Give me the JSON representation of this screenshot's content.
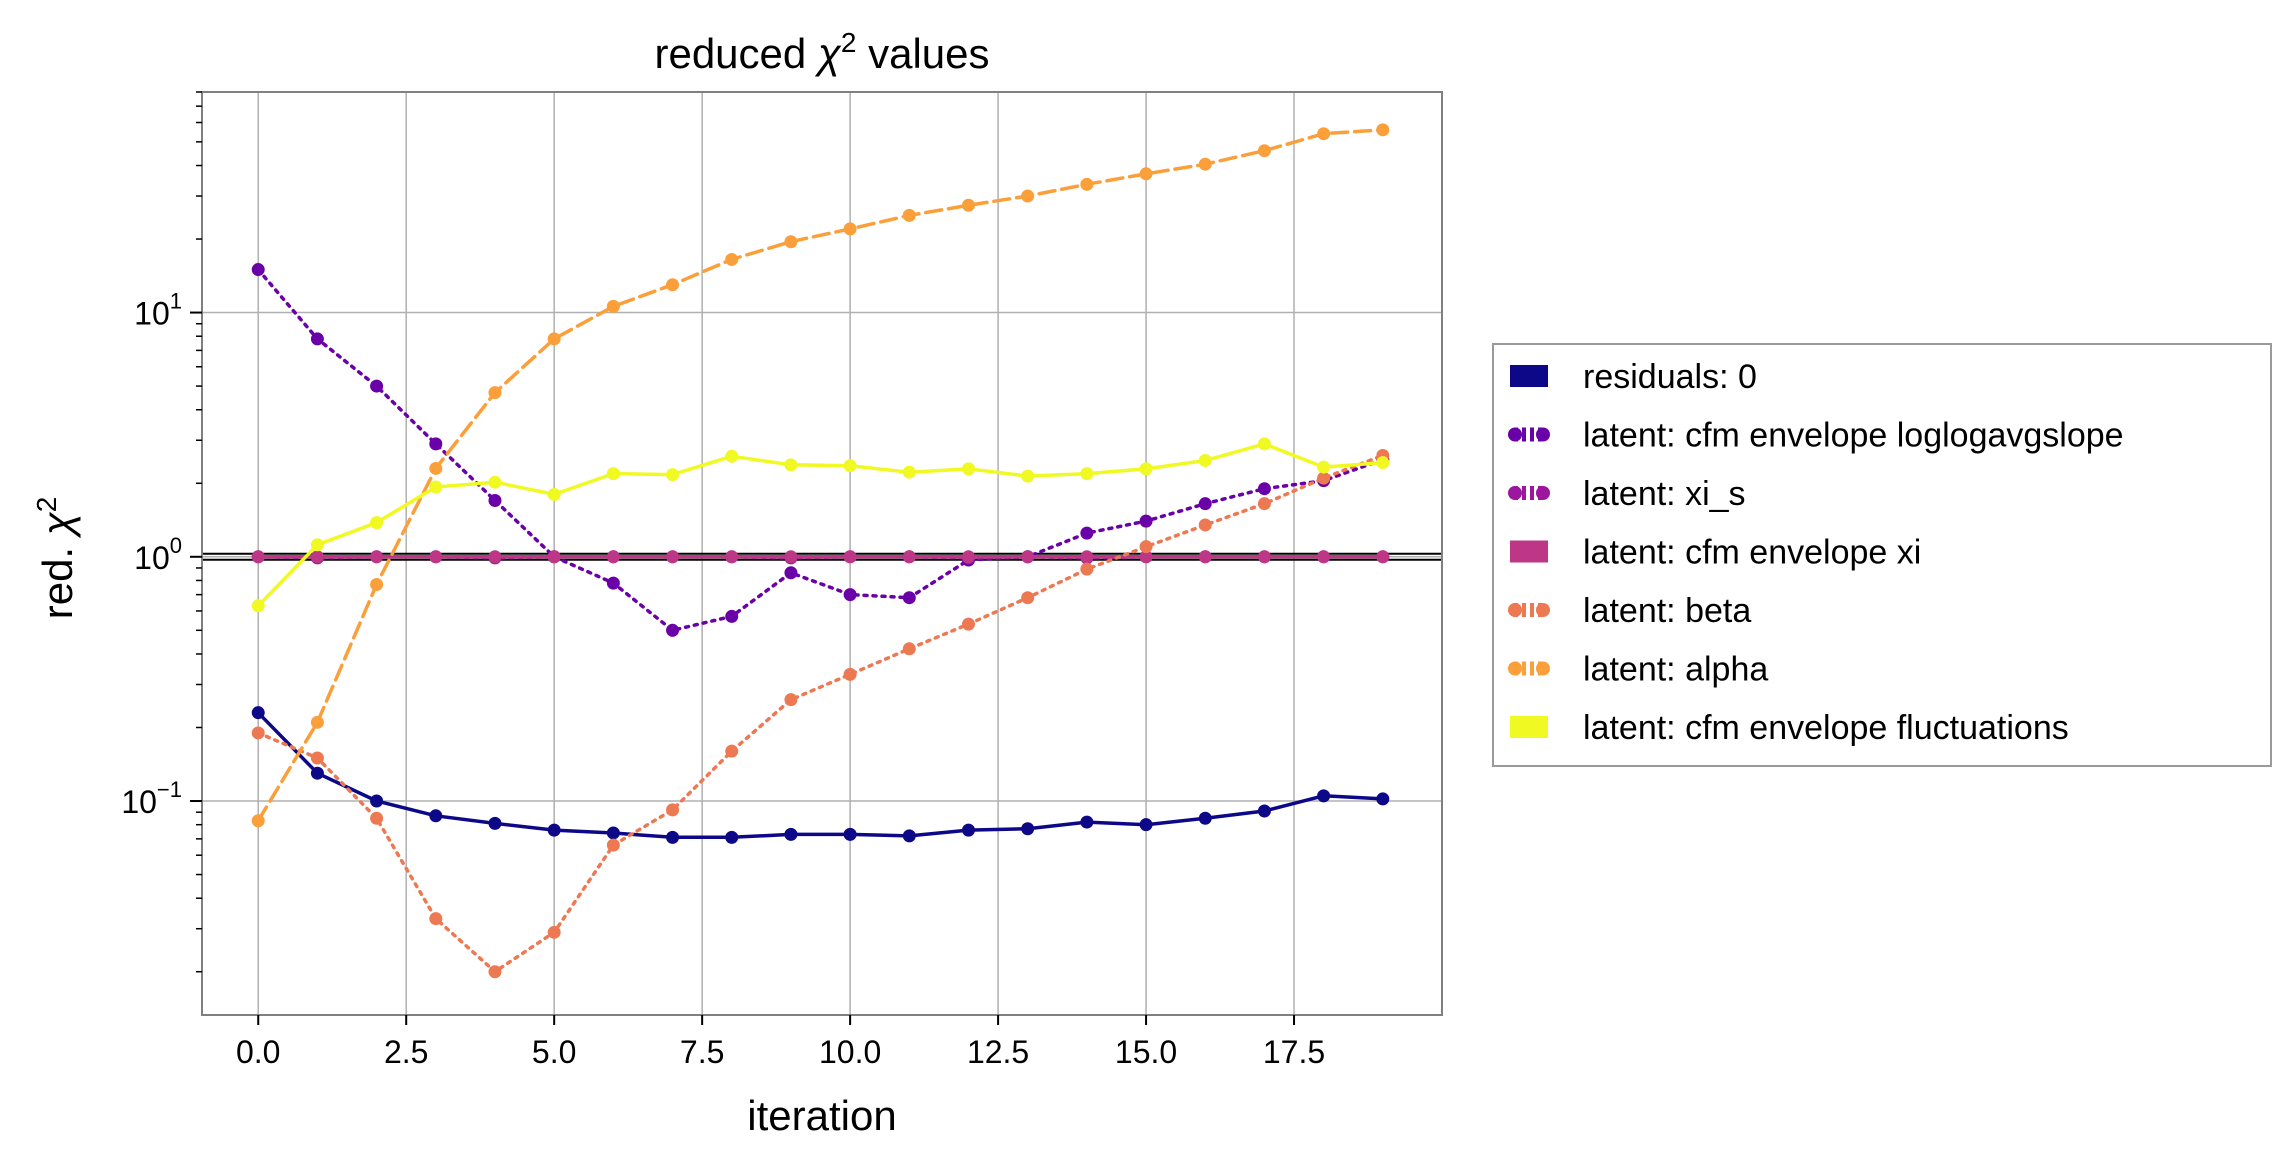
{
  "chart_data": {
    "type": "line",
    "title_prefix": "reduced ",
    "title_symbol": "χ",
    "title_sup": "2",
    "title_suffix": " values",
    "xlabel": "iteration",
    "ylabel_prefix": "red. ",
    "ylabel_symbol": "χ",
    "ylabel_sup": "2",
    "yscale": "log",
    "xlim": [
      -0.95,
      20.0
    ],
    "ylim": [
      0.0133,
      80
    ],
    "grid": true,
    "legend_position": "outside-right",
    "reference_line": 1.0,
    "x_ticks": [
      {
        "value": 0.0,
        "label": "0.0"
      },
      {
        "value": 2.5,
        "label": "2.5"
      },
      {
        "value": 5.0,
        "label": "5.0"
      },
      {
        "value": 7.5,
        "label": "7.5"
      },
      {
        "value": 10.0,
        "label": "10.0"
      },
      {
        "value": 12.5,
        "label": "12.5"
      },
      {
        "value": 15.0,
        "label": "15.0"
      },
      {
        "value": 17.5,
        "label": "17.5"
      }
    ],
    "y_ticks": [
      {
        "value": 0.1,
        "base": "10",
        "exp": "−1"
      },
      {
        "value": 1,
        "base": "10",
        "exp": "0"
      },
      {
        "value": 10,
        "base": "10",
        "exp": "1"
      }
    ],
    "x": [
      0,
      1,
      2,
      3,
      4,
      5,
      6,
      7,
      8,
      9,
      10,
      11,
      12,
      13,
      14,
      15,
      16,
      17,
      18,
      19
    ],
    "series": [
      {
        "name": "residuals: 0",
        "color": "#0d0887",
        "dash": "solid",
        "legend_marker": "rect",
        "values": [
          0.23,
          0.13,
          0.1,
          0.087,
          0.081,
          0.076,
          0.074,
          0.071,
          0.071,
          0.073,
          0.073,
          0.072,
          0.076,
          0.077,
          0.082,
          0.08,
          0.085,
          0.091,
          0.105,
          0.102
        ]
      },
      {
        "name": "latent: cfm envelope loglogavgslope",
        "color": "#6a00a8",
        "dash": "dotted",
        "legend_marker": "dots",
        "values": [
          15.0,
          7.8,
          5.0,
          2.9,
          1.7,
          1.0,
          0.78,
          0.5,
          0.57,
          0.86,
          0.7,
          0.68,
          0.97,
          1.0,
          1.25,
          1.4,
          1.65,
          1.9,
          2.05,
          2.5
        ]
      },
      {
        "name": "latent: xi_s",
        "color": "#9c179e",
        "dash": "dotted",
        "legend_marker": "dots",
        "values": [
          1.0,
          0.99,
          1.0,
          1.0,
          0.99,
          1.0,
          1.0,
          1.0,
          1.0,
          0.99,
          1.0,
          1.0,
          0.99,
          1.0,
          0.99,
          1.0,
          1.0,
          1.0,
          1.0,
          1.0
        ]
      },
      {
        "name": "latent: cfm envelope xi",
        "color": "#bd3786",
        "dash": "solid",
        "legend_marker": "rect",
        "values": [
          1.0,
          1.0,
          1.0,
          1.0,
          1.0,
          1.0,
          1.0,
          1.0,
          1.0,
          1.0,
          1.0,
          1.0,
          1.0,
          1.0,
          1.0,
          1.0,
          1.0,
          1.0,
          1.0,
          1.0
        ]
      },
      {
        "name": "latent: beta",
        "color": "#ed7953",
        "dash": "dotted",
        "legend_marker": "dots",
        "values": [
          0.19,
          0.15,
          0.085,
          0.033,
          0.02,
          0.029,
          0.066,
          0.092,
          0.16,
          0.26,
          0.33,
          0.42,
          0.53,
          0.68,
          0.89,
          1.1,
          1.35,
          1.65,
          2.1,
          2.6
        ]
      },
      {
        "name": "latent: alpha",
        "color": "#fb9f3a",
        "dash": "dashed",
        "legend_marker": "dots",
        "values": [
          0.083,
          0.21,
          0.77,
          2.3,
          4.7,
          7.8,
          10.6,
          13.0,
          16.5,
          19.5,
          22.0,
          25.0,
          27.5,
          30.0,
          33.5,
          37.0,
          40.5,
          46.0,
          54.0,
          56.0
        ]
      },
      {
        "name": "latent: cfm envelope fluctuations",
        "color": "#f0f921",
        "dash": "solid",
        "legend_marker": "rect",
        "values": [
          0.63,
          1.12,
          1.38,
          1.93,
          2.02,
          1.8,
          2.19,
          2.17,
          2.58,
          2.38,
          2.36,
          2.22,
          2.29,
          2.14,
          2.19,
          2.29,
          2.48,
          2.9,
          2.33,
          2.43
        ]
      }
    ]
  }
}
